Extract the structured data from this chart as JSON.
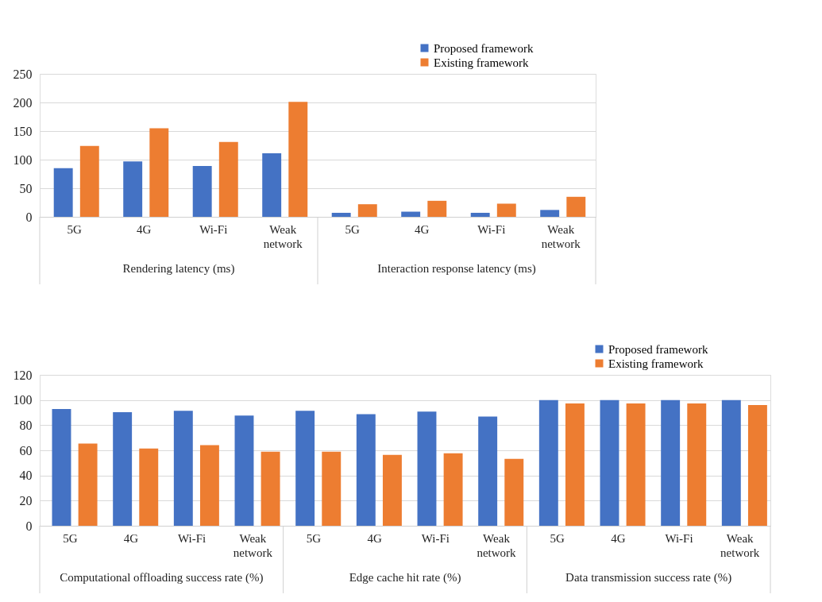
{
  "chart_data": [
    {
      "type": "bar",
      "categories": [
        "5G",
        "4G",
        "Wi-Fi",
        "Weak network",
        "5G",
        "4G",
        "Wi-Fi",
        "Weak network"
      ],
      "series": [
        {
          "name": "Proposed framework",
          "color": "#4472c4",
          "values": [
            85,
            97,
            89,
            111,
            7,
            9,
            7,
            12
          ]
        },
        {
          "name": "Existing framework",
          "color": "#ed7d31",
          "values": [
            124,
            155,
            131,
            201,
            22,
            28,
            23,
            35
          ]
        }
      ],
      "ylim": [
        0,
        250
      ],
      "yticks": [
        0,
        50,
        100,
        150,
        200,
        250
      ],
      "grid": "y",
      "legend": "top right",
      "annotations": [
        "Rendering latency (ms)",
        "Interaction response latency (ms)"
      ]
    },
    {
      "type": "bar",
      "categories": [
        "5G",
        "4G",
        "Wi-Fi",
        "Weak network",
        "5G",
        "4G",
        "Wi-Fi",
        "Weak network",
        "5G",
        "4G",
        "Wi-Fi",
        "Weak network"
      ],
      "series": [
        {
          "name": "Proposed framework",
          "color": "#4472c4",
          "values": [
            92.8,
            90.3,
            91.5,
            87.6,
            91.5,
            88.8,
            90.8,
            86.8,
            100,
            100,
            100,
            100
          ]
        },
        {
          "name": "Existing framework",
          "color": "#ed7d31",
          "values": [
            65.4,
            61.4,
            64.1,
            58.9,
            58.9,
            56.4,
            57.7,
            53.2,
            97.3,
            97.3,
            97.3,
            96
          ]
        }
      ],
      "ylim": [
        0,
        120
      ],
      "yticks": [
        0,
        20,
        40,
        60,
        80,
        100,
        120
      ],
      "grid": "y",
      "legend": "top right",
      "annotations": [
        "Computational offloading success rate (%)",
        "Edge cache hit rate (%)",
        "Data transmission success rate (%)"
      ]
    }
  ]
}
